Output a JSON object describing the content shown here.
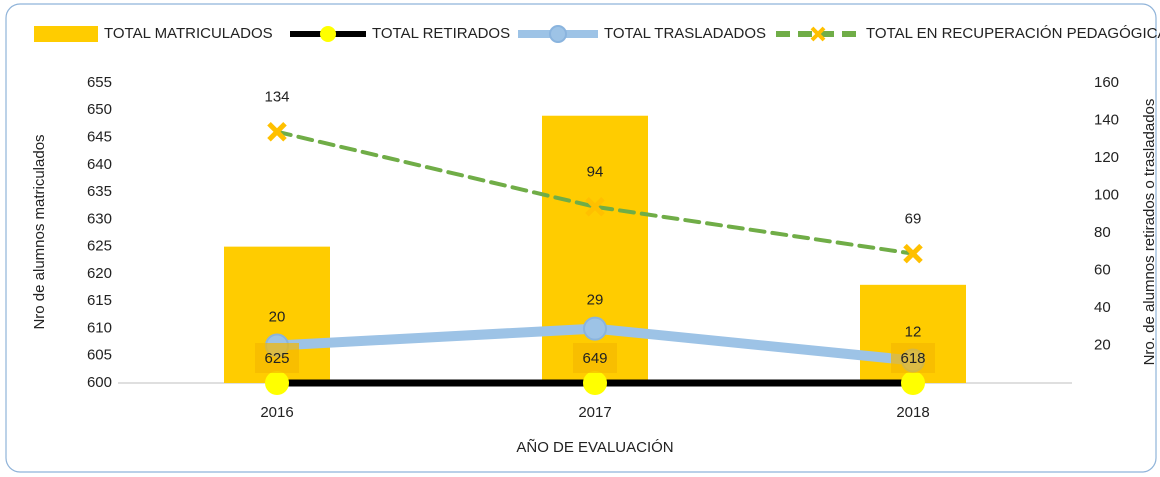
{
  "chart_data": {
    "type": "combo",
    "categories": [
      "2016",
      "2017",
      "2018"
    ],
    "xlabel": "AÑO DE EVALUACIÓN",
    "ylabel": "Nro de alumnos matriculados",
    "y2label": "Nro. de alumnos retirados o trasladados",
    "ylim": [
      600,
      655
    ],
    "yticks": [
      600,
      605,
      610,
      615,
      620,
      625,
      630,
      635,
      640,
      645,
      650,
      655
    ],
    "y2lim": [
      0,
      160
    ],
    "y2ticks": [
      20,
      40,
      60,
      80,
      100,
      120,
      140,
      160
    ],
    "series": [
      {
        "name": "TOTAL MATRICULADOS",
        "type": "bar",
        "color": "#FFCC00",
        "values": [
          625,
          649,
          618
        ]
      },
      {
        "name": "TOTAL RETIRADOS",
        "type": "line",
        "axis": "y2",
        "color": "#000000",
        "marker_color": "#FFFF00",
        "values": [
          0,
          0,
          0
        ]
      },
      {
        "name": "TOTAL TRASLADADOS",
        "type": "line",
        "axis": "y2",
        "color": "#9DC3E6",
        "values": [
          20,
          29,
          12
        ]
      },
      {
        "name": "TOTAL EN RECUPERACIÓN PEDAGÓGICA",
        "type": "line",
        "axis": "y2",
        "color": "#70AD47",
        "marker_color": "#FFC000",
        "dashed": true,
        "values": [
          134,
          94,
          69
        ]
      }
    ]
  }
}
